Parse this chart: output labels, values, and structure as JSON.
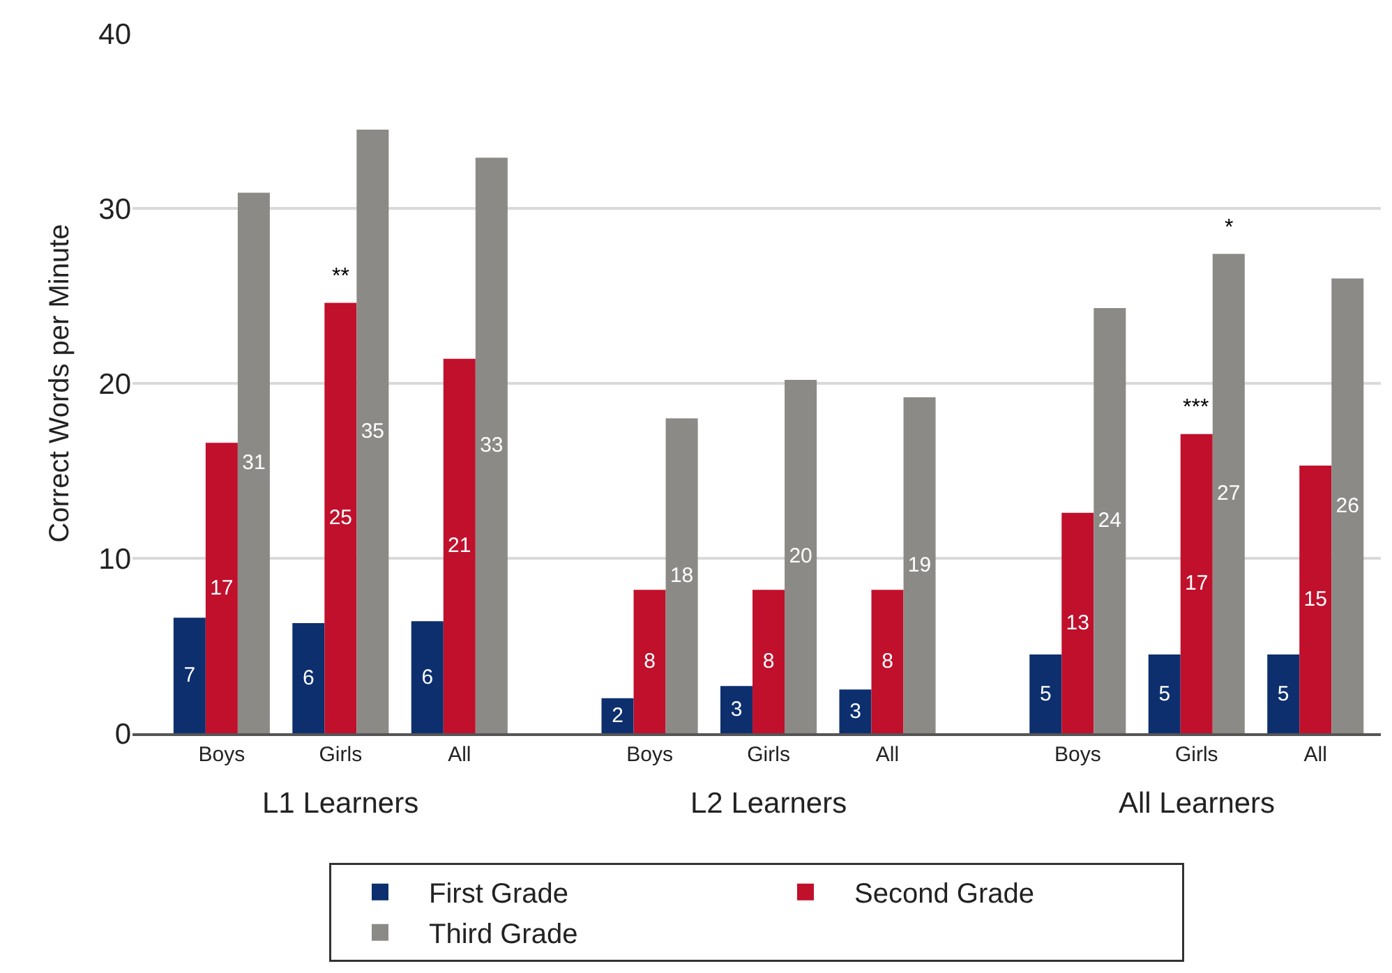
{
  "chart_data": {
    "type": "bar",
    "ylabel": "Correct Words per Minute",
    "categories": [
      "Boys",
      "Girls",
      "All",
      "Boys",
      "Girls",
      "All",
      "Boys",
      "Girls",
      "All"
    ],
    "series": [
      {
        "name": "First Grade",
        "color": "#0d2f6e",
        "values": [
          6.6,
          6.3,
          6.4,
          2.0,
          2.7,
          2.5,
          4.5,
          4.5,
          4.5
        ],
        "value_labels": [
          "7",
          "6",
          "6",
          "2",
          "3",
          "3",
          "5",
          "5",
          "5"
        ]
      },
      {
        "name": "Second Grade",
        "color": "#c0102c",
        "values": [
          16.6,
          24.6,
          21.4,
          8.2,
          8.2,
          8.2,
          12.6,
          17.1,
          15.3
        ],
        "value_labels": [
          "17",
          "25",
          "21",
          "8",
          "8",
          "8",
          "13",
          "17",
          "15"
        ]
      },
      {
        "name": "Third Grade",
        "color": "#8c8a86",
        "values": [
          30.9,
          34.5,
          32.9,
          18.0,
          20.2,
          19.2,
          24.3,
          27.4,
          26.0
        ],
        "value_labels": [
          "31",
          "35",
          "33",
          "18",
          "20",
          "19",
          "24",
          "27",
          "26"
        ]
      }
    ],
    "annotations": [
      "L1 Learners",
      "L2 Learners",
      "All Learners",
      {
        "text": "**",
        "x": "Girls",
        "y": 24.6
      },
      "***",
      "*"
    ],
    "ylim": [
      0,
      40
    ],
    "yticks": [
      0,
      10,
      20,
      30,
      40
    ],
    "grid": "y",
    "legend": "bottom"
  }
}
